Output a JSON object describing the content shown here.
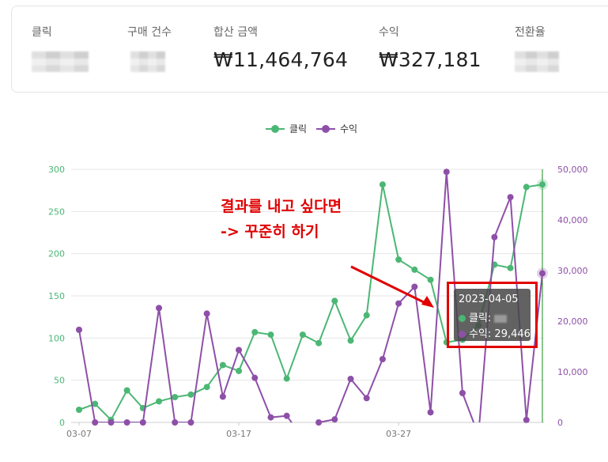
{
  "summary": {
    "metrics": [
      {
        "label": "클릭",
        "value": null
      },
      {
        "label": "구매 건수",
        "value": null
      },
      {
        "label": "합산 금액",
        "value": "₩11,464,764"
      },
      {
        "label": "수익",
        "value": "₩327,181"
      },
      {
        "label": "전환율",
        "value": null
      }
    ]
  },
  "annotation": {
    "line1": "결과를 내고 싶다면",
    "line2": "-> 꾸준히 하기"
  },
  "tooltip": {
    "date": "2023-04-05",
    "click_label": "클릭:",
    "revenue_text": "수익: 29,446"
  },
  "colors": {
    "clicks": "#4bb774",
    "revenue": "#8e4fa8",
    "annotation": "#e00000"
  },
  "chart_data": {
    "type": "line",
    "legend_position": "top-center",
    "grid": true,
    "x_tick_labels": [
      "03-07",
      "03-17",
      "03-27"
    ],
    "y_left_ticks": [
      "0",
      "50",
      "100",
      "150",
      "200",
      "250",
      "300"
    ],
    "y_right_ticks": [
      "0",
      "10,000",
      "20,000",
      "30,000",
      "40,000",
      "50,000"
    ],
    "y_left_lim": [
      0,
      300
    ],
    "y_right_lim": [
      0,
      50000
    ],
    "series": [
      {
        "name": "클릭",
        "axis": "left",
        "values": [
          15,
          22,
          3,
          38,
          17,
          25,
          30,
          33,
          42,
          68,
          61,
          107,
          104,
          52,
          104,
          94,
          144,
          97,
          127,
          282,
          193,
          181,
          169,
          95,
          98,
          115,
          187,
          183,
          279,
          282
        ]
      },
      {
        "name": "수익",
        "axis": "right",
        "values": [
          18300,
          0,
          0,
          0,
          0,
          22600,
          0,
          0,
          21500,
          5100,
          14300,
          8800,
          1000,
          1300,
          -3000,
          0,
          600,
          8600,
          4800,
          12500,
          23500,
          26800,
          2000,
          49500,
          5800,
          -2500,
          36600,
          44500,
          500,
          29446
        ]
      }
    ]
  }
}
